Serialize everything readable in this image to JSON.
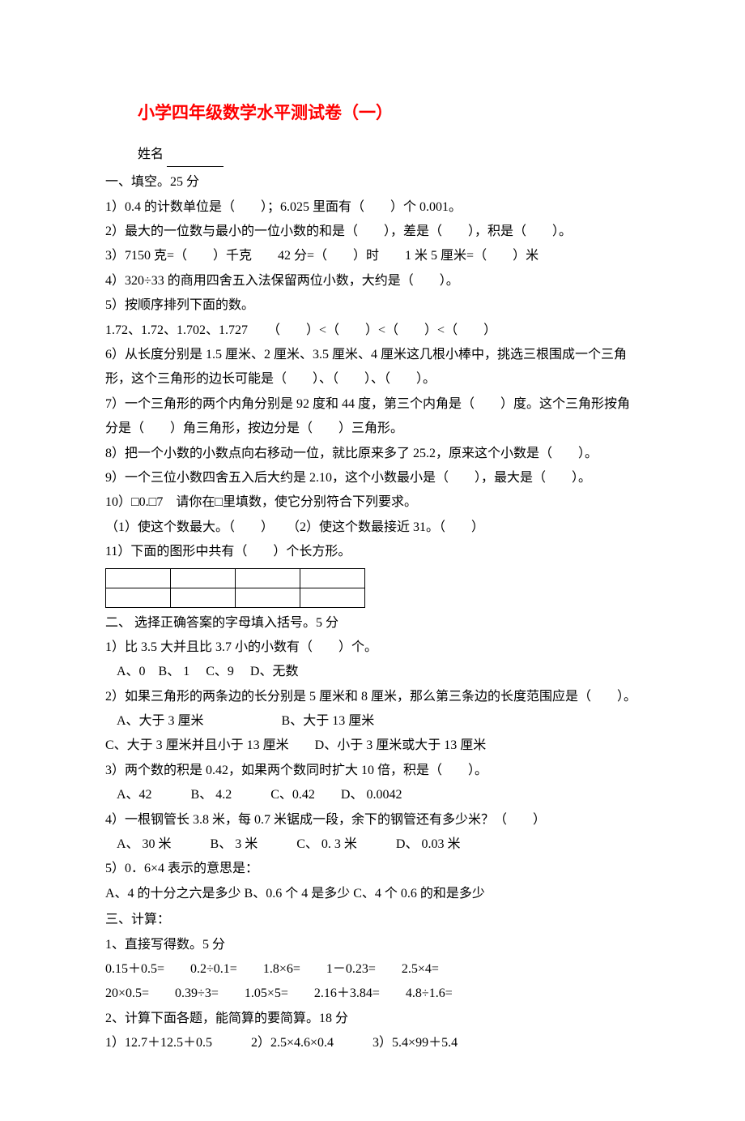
{
  "title": "小学四年级数学水平测试卷（一）",
  "name_label": "姓名",
  "section1": {
    "heading": "一、填空。25 分",
    "q1": "1）0.4 的计数单位是（　　）；6.025 里面有（　　）个 0.001。",
    "q2": "2）最大的一位数与最小的一位小数的和是（　　），差是（　　），积是（　　）。",
    "q3": "3）7150 克=（　　）千克　　42 分=（　　）时　　1 米 5 厘米=（　　）米",
    "q4": "4）320÷33 的商用四舍五入法保留两位小数，大约是（　　）。",
    "q5": "5）按顺序排列下面的数。",
    "q5_line2": "1.72、1.72、1.702、1.727　　（　　）<（　　）<（　　）<（　　）",
    "q6": "6）从长度分别是 1.5 厘米、2 厘米、3.5 厘米、4 厘米这几根小棒中，挑选三根围成一个三角形，这个三角形的边长可能是（　　）、（　　）、（　　）。",
    "q7": "7）一个三角形的两个内角分别是 92 度和 44 度，第三个内角是（　　）度。这个三角形按角分是（　　）角三角形，按边分是（　　）三角形。",
    "q8": "8）把一个小数的小数点向右移动一位，就比原来多了 25.2，原来这个小数是（　　）。",
    "q9": "9）一个三位小数四舍五入后大约是 2.10，这个小数最小是（　　），最大是（　　）。",
    "q10": "10）□0.□7　请你在□里填数，使它分别符合下列要求。",
    "q10_sub": "（1）使这个数最大。（　　）　　（2）使这个数最接近 31。（　　）",
    "q11": "11）下面的图形中共有（　　）个长方形。"
  },
  "section2": {
    "heading": "二、 选择正确答案的字母填入括号。5 分",
    "q1": "1）比 3.5 大并且比 3.7 小的小数有（　　）个。",
    "q1_opts": "A、0　B、 1　 C、9　 D、无数",
    "q2": "2）如果三角形的两条边的长分别是 5 厘米和 8 厘米，那么第三条边的长度范围应是（　　）。",
    "q2_opts1": "A、大于 3 厘米　　　　　　B、大于 13 厘米",
    "q2_opts2": "C、大于 3 厘米并且小于 13 厘米　　D、小于 3 厘米或大于 13 厘米",
    "q3": "3）两个数的积是 0.42，如果两个数同时扩大 10 倍，积是（　　）。",
    "q3_opts": "A、42　　　B、 4.2　　　C、0.42　　D、 0.0042",
    "q4": "4）一根钢管长 3.8 米，每 0.7 米锯成一段，余下的钢管还有多少米？（　　）",
    "q4_opts": "A、 30 米　　　B、 3 米　　　C、 0. 3 米　　　D、 0.03 米",
    "q5": "5）0．6×4 表示的意思是：",
    "q5_opts": "A、4 的十分之六是多少  B、0.6 个 4 是多少  C、4 个 0.6 的和是多少"
  },
  "section3": {
    "heading": "三、计算：",
    "sub1": "1、直接写得数。5 分",
    "sub1_line1": "0.15＋0.5=　　0.2÷0.1=　　1.8×6=　　1－0.23=　　2.5×4=",
    "sub1_line2": "20×0.5=　　0.39÷3=　　1.05×5=　　2.16＋3.84=　　4.8÷1.6=",
    "sub2": "2、计算下面各题，能简算的要简算。18 分",
    "sub2_line1": "1）12.7＋12.5＋0.5　　　2）2.5×4.6×0.4　　　3）5.4×99＋5.4"
  },
  "grid": {
    "rows": 2,
    "cols": 4
  }
}
